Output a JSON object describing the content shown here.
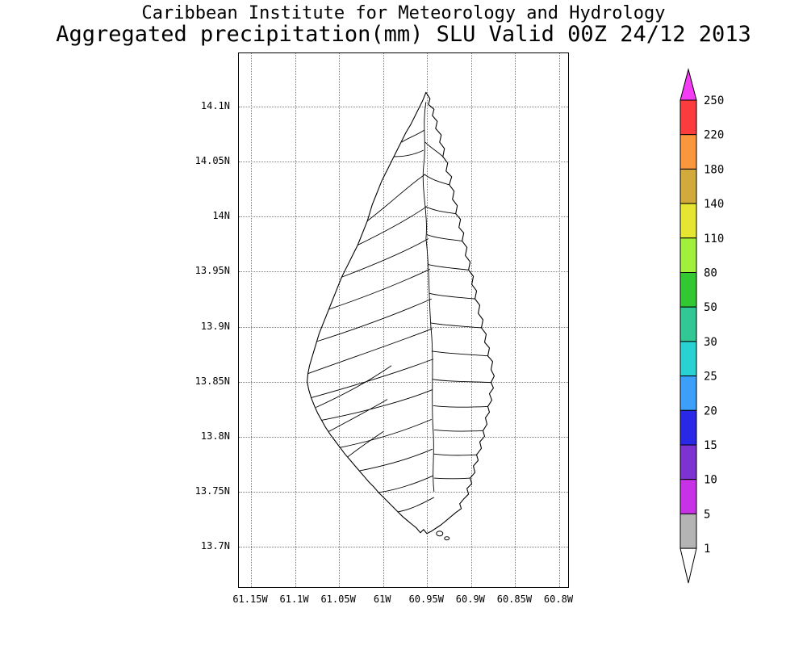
{
  "header": {
    "title_line1": "Caribbean Institute for Meteorology and Hydrology",
    "title_line2": "Aggregated precipitation(mm) SLU Valid 00Z 24/12 2013"
  },
  "chart_data": {
    "type": "map",
    "subtype": "precipitation map with watershed boundaries, island outline of Saint Lucia",
    "region": "SLU (Saint Lucia)",
    "units": "mm",
    "valid_time": "00Z 24/12 2013",
    "grid": "dotted",
    "legend_position": "right",
    "map_fill": "none (outline only, no shaded precipitation values visible)",
    "y_axis": {
      "ticks": [
        "14.1N",
        "14.05N",
        "14N",
        "13.95N",
        "13.9N",
        "13.85N",
        "13.8N",
        "13.75N",
        "13.7N"
      ]
    },
    "x_axis": {
      "ticks": [
        "61.15W",
        "61.1W",
        "61.05W",
        "61W",
        "60.95W",
        "60.9W",
        "60.85W",
        "60.8W"
      ]
    },
    "colorbar": {
      "levels_top_to_bottom": [
        "250",
        "220",
        "180",
        "140",
        "110",
        "80",
        "50",
        "30",
        "25",
        "20",
        "15",
        "10",
        "5",
        "1"
      ],
      "top_arrow_color": "#f53cf5",
      "segment_colors_top_to_bottom": [
        "#fa3c3c",
        "#fa963c",
        "#d2aa3c",
        "#e6e632",
        "#a0f03c",
        "#32c832",
        "#32c896",
        "#28d2d2",
        "#3ca0fa",
        "#2828e6",
        "#7d32d2",
        "#c832e6",
        "#b4b4b4"
      ],
      "bottom_arrow_color": "#ffffff",
      "outline_color": "#000000"
    }
  }
}
